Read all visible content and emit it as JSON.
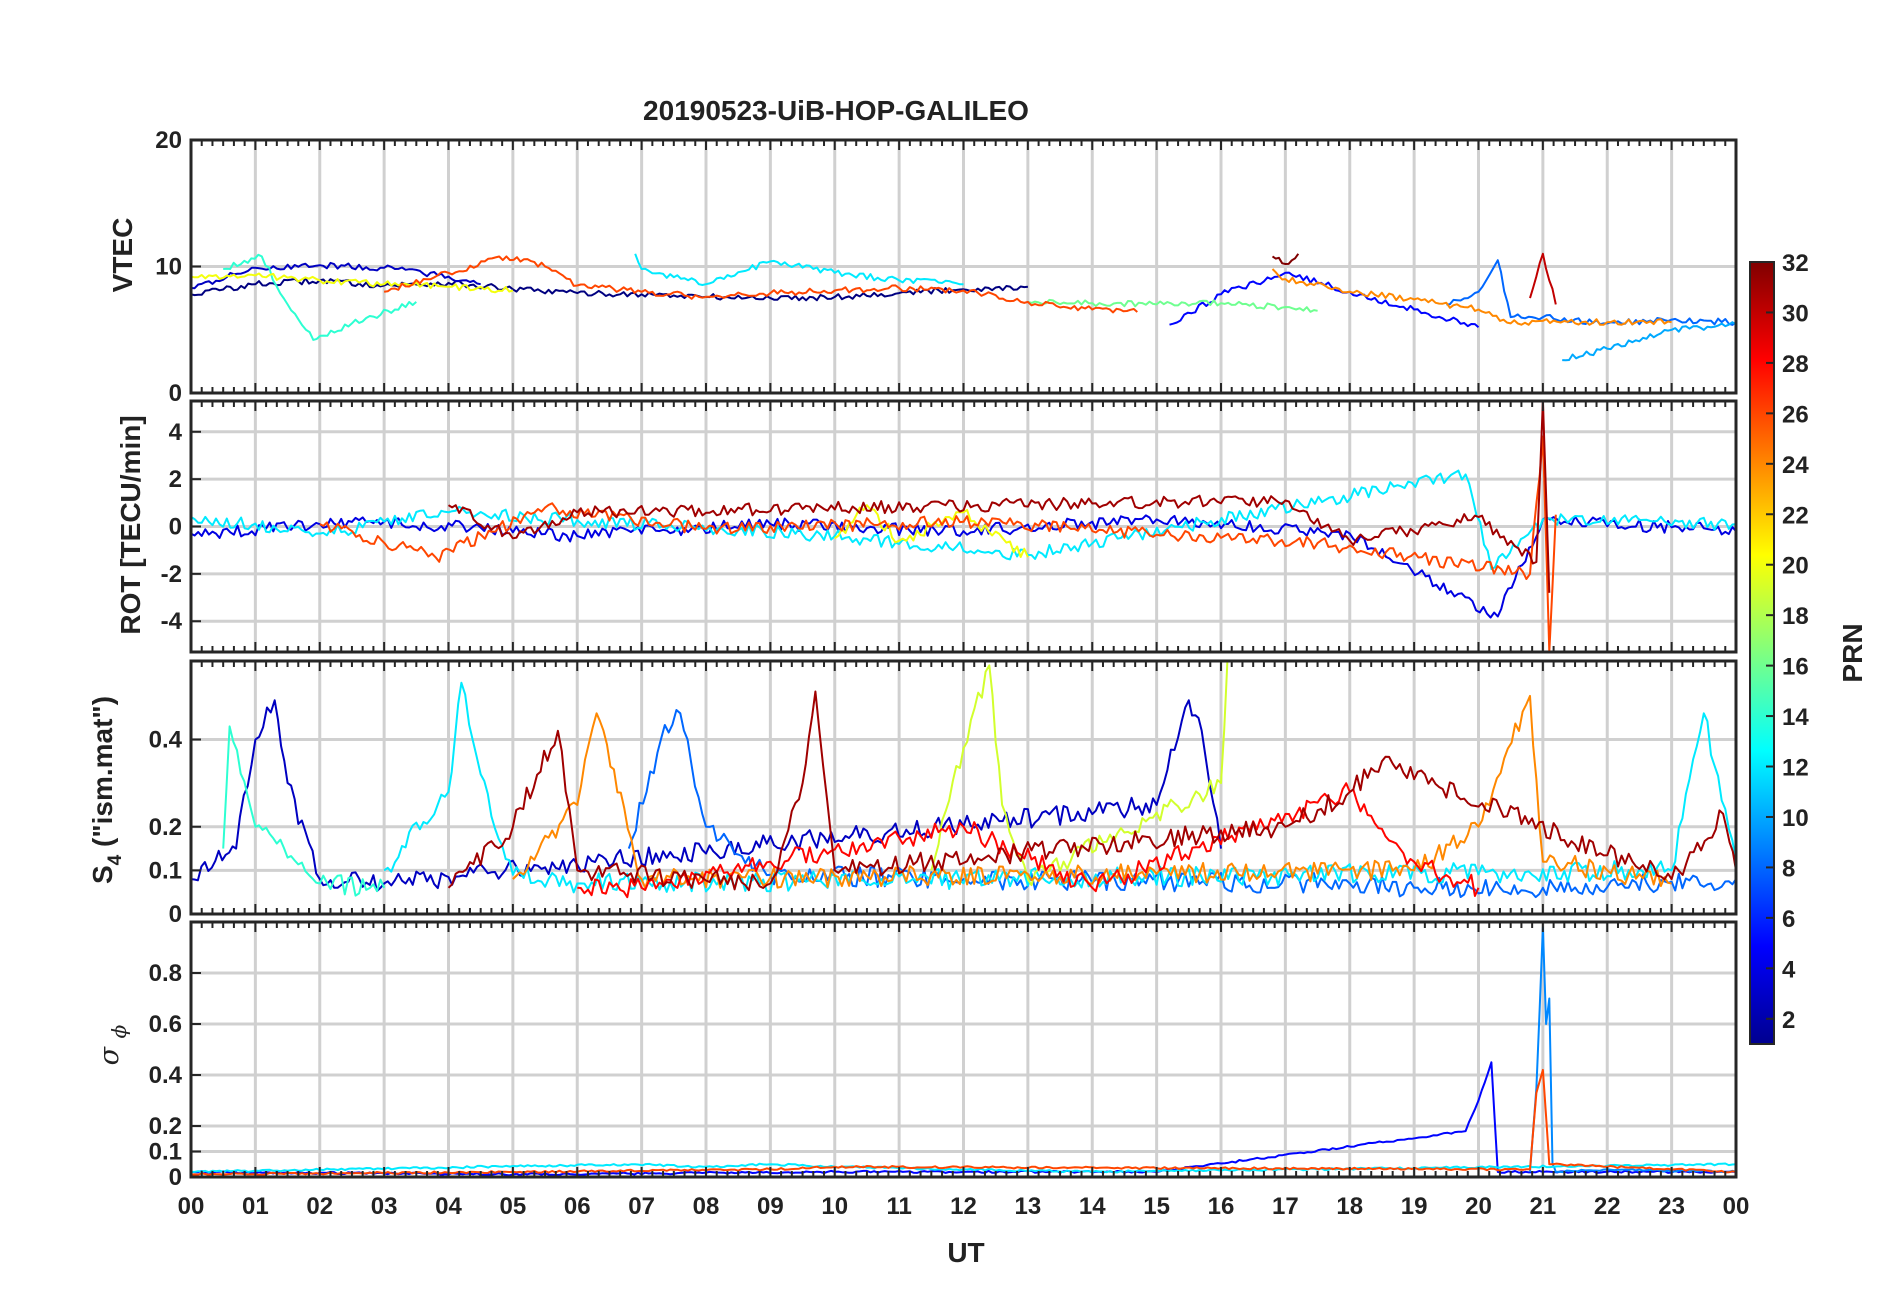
{
  "chart_data": {
    "type": "line",
    "title": "20190523-UiB-HOP-GALILEO",
    "xlabel": "UT",
    "x_tick_labels": [
      "00",
      "01",
      "02",
      "03",
      "04",
      "05",
      "06",
      "07",
      "08",
      "09",
      "10",
      "11",
      "12",
      "13",
      "14",
      "15",
      "16",
      "17",
      "18",
      "19",
      "20",
      "21",
      "22",
      "23",
      "00"
    ],
    "xlim_hours": [
      0,
      24
    ],
    "colorbar": {
      "label": "PRN",
      "colormap": "jet",
      "range": [
        1,
        32
      ],
      "tick_labels": [
        "2",
        "4",
        "6",
        "8",
        "10",
        "12",
        "14",
        "16",
        "18",
        "20",
        "22",
        "24",
        "26",
        "28",
        "30",
        "32"
      ]
    },
    "panels": [
      {
        "name": "VTEC",
        "ylabel": "VTEC",
        "ylim": [
          0,
          20
        ],
        "y_ticks": [
          0,
          10,
          20
        ],
        "y_tick_labels": [
          "0",
          "10",
          "20"
        ],
        "series": [
          {
            "prn": 1,
            "x": [
              0,
              1,
              2,
              3,
              4,
              5,
              6,
              7,
              8,
              9,
              10,
              11,
              12,
              13
            ],
            "values": [
              7.8,
              8.6,
              8.9,
              8.5,
              8.7,
              8.2,
              7.9,
              7.8,
              7.6,
              7.5,
              7.6,
              7.9,
              8.2,
              8.4
            ]
          },
          {
            "prn": 3,
            "x": [
              0,
              1,
              2,
              3,
              4,
              4.5
            ],
            "values": [
              8.3,
              9.9,
              10.1,
              9.9,
              9.2,
              8.6
            ]
          },
          {
            "prn": 5,
            "x": [
              15.2,
              16,
              17,
              18,
              19,
              20
            ],
            "values": [
              5.4,
              7.8,
              9.5,
              8.0,
              6.6,
              5.2
            ]
          },
          {
            "prn": 8,
            "x": [
              19.5,
              20,
              20.3,
              20.5,
              21,
              22,
              23,
              24
            ],
            "values": [
              7.0,
              8.0,
              10.5,
              6.0,
              6.0,
              5.5,
              5.8,
              5.6
            ]
          },
          {
            "prn": 10,
            "x": [
              21.3,
              22,
              23,
              24
            ],
            "values": [
              2.6,
              3.5,
              5.0,
              5.4
            ]
          },
          {
            "prn": 12,
            "x": [
              6.9,
              7.0,
              8,
              9,
              10,
              11,
              12
            ],
            "values": [
              11.0,
              9.8,
              8.6,
              10.4,
              9.5,
              8.9,
              8.6
            ]
          },
          {
            "prn": 14,
            "x": [
              0.5,
              1.1,
              1.5,
              1.9,
              2.5,
              3.5
            ],
            "values": [
              9.8,
              10.8,
              7.0,
              4.2,
              5.5,
              7.2
            ]
          },
          {
            "prn": 16,
            "x": [
              13,
              14,
              15,
              16,
              17,
              17.5
            ],
            "values": [
              7.2,
              7.1,
              7.0,
              7.1,
              6.8,
              6.5
            ]
          },
          {
            "prn": 20,
            "x": [
              0,
              1,
              2,
              3,
              4,
              5
            ],
            "values": [
              9.2,
              9.3,
              8.9,
              8.6,
              8.4,
              8.1
            ]
          },
          {
            "prn": 24,
            "x": [
              16.8,
              17,
              18,
              19,
              20,
              20.5,
              21,
              22,
              23
            ],
            "values": [
              9.8,
              9.0,
              8.0,
              7.4,
              6.6,
              5.5,
              5.7,
              5.6,
              5.6
            ]
          },
          {
            "prn": 26,
            "x": [
              3,
              4,
              4.9,
              5.5,
              6,
              7,
              8,
              9,
              10,
              11,
              12,
              13,
              14,
              14.7
            ],
            "values": [
              8.0,
              9.5,
              10.8,
              10.0,
              8.5,
              8.0,
              7.6,
              7.9,
              8.1,
              8.3,
              8.1,
              7.2,
              6.6,
              6.4
            ]
          },
          {
            "prn": 30,
            "x": [
              20.8,
              21,
              21.2
            ],
            "values": [
              7.5,
              11.0,
              7.0
            ]
          },
          {
            "prn": 32,
            "x": [
              16.8,
              17,
              17.2
            ],
            "values": [
              10.8,
              10.2,
              11.0
            ]
          }
        ]
      },
      {
        "name": "ROT",
        "ylabel": "ROT [TECU/min]",
        "ylim": [
          -5.3,
          5.3
        ],
        "y_ticks": [
          -4,
          -2,
          0,
          2,
          4
        ],
        "y_tick_labels": [
          "-4",
          "-2",
          "0",
          "2",
          "4"
        ],
        "series": [
          {
            "prn": 4,
            "x": [
              0,
              3,
              6,
              9,
              12,
              15,
              18,
              20.3,
              21,
              24
            ],
            "values": [
              -0.3,
              0.2,
              -0.4,
              0.1,
              -0.2,
              0.3,
              -0.3,
              -3.8,
              0.3,
              -0.2
            ]
          },
          {
            "prn": 12,
            "x": [
              0,
              2,
              4,
              10,
              13,
              19.8,
              20.2,
              21,
              24
            ],
            "values": [
              0.4,
              -0.3,
              0.6,
              -0.4,
              -1.2,
              2.2,
              -1.8,
              0.3,
              0.1
            ]
          },
          {
            "prn": 20,
            "x": [
              10,
              10.5,
              11,
              12,
              13
            ],
            "values": [
              -0.5,
              0.9,
              -0.6,
              0.6,
              -1.3
            ]
          },
          {
            "prn": 26,
            "x": [
              2,
              3.8,
              5.5,
              8,
              12,
              17.5,
              20.8,
              21,
              21.1,
              21.2
            ],
            "values": [
              0.1,
              -1.3,
              0.8,
              -0.1,
              0.2,
              -0.7,
              -2.0,
              3.8,
              -5.3,
              0.5
            ]
          },
          {
            "prn": 31,
            "x": [
              4,
              5,
              6,
              17,
              18,
              20,
              20.9,
              21.0,
              21.1
            ],
            "values": [
              0.9,
              -0.5,
              0.6,
              1.1,
              -0.6,
              0.4,
              -1.5,
              5.3,
              -2.8
            ]
          }
        ]
      },
      {
        "name": "S4",
        "ylabel": "S4 (\"ism.mat\")",
        "ylim": [
          0,
          0.58
        ],
        "y_ticks": [
          0,
          0.1,
          0.2,
          0.4
        ],
        "y_tick_labels": [
          "0",
          "0.1",
          "0.2",
          "0.4"
        ],
        "series": [
          {
            "prn": 3,
            "x": [
              0,
              0.7,
              1,
              1.3,
              1.5,
              2,
              3,
              15,
              15.5,
              15.7,
              16
            ],
            "values": [
              0.08,
              0.15,
              0.4,
              0.49,
              0.3,
              0.08,
              0.07,
              0.25,
              0.49,
              0.42,
              0.15
            ]
          },
          {
            "prn": 8,
            "x": [
              6.8,
              7.3,
              7.6,
              8,
              9,
              12,
              18,
              19,
              21,
              24
            ],
            "values": [
              0.15,
              0.4,
              0.46,
              0.2,
              0.09,
              0.08,
              0.07,
              0.06,
              0.06,
              0.08
            ]
          },
          {
            "prn": 12,
            "x": [
              3,
              4,
              4.2,
              4.5,
              5,
              6,
              23,
              23.5,
              24
            ],
            "values": [
              0.1,
              0.28,
              0.53,
              0.32,
              0.09,
              0.07,
              0.1,
              0.46,
              0.12
            ]
          },
          {
            "prn": 14,
            "x": [
              0.5,
              0.6,
              1,
              2,
              3
            ],
            "values": [
              0.15,
              0.43,
              0.2,
              0.07,
              0.06
            ]
          },
          {
            "prn": 19,
            "x": [
              11.5,
              12,
              12.4,
              12.6,
              13,
              16,
              16.1
            ],
            "values": [
              0.1,
              0.38,
              0.57,
              0.25,
              0.08,
              0.3,
              0.58
            ]
          },
          {
            "prn": 24,
            "x": [
              5,
              6,
              6.3,
              7,
              19,
              20,
              20.8,
              21,
              22,
              23
            ],
            "values": [
              0.08,
              0.25,
              0.46,
              0.08,
              0.1,
              0.2,
              0.5,
              0.12,
              0.1,
              0.07
            ]
          },
          {
            "prn": 28,
            "x": [
              6,
              7,
              9,
              12,
              14,
              18,
              19,
              20
            ],
            "values": [
              0.06,
              0.06,
              0.12,
              0.2,
              0.06,
              0.28,
              0.12,
              0.06
            ]
          },
          {
            "prn": 31,
            "x": [
              4,
              5,
              5.7,
              6,
              9,
              9.5,
              9.7,
              10,
              17,
              18,
              18.5,
              23,
              23.8,
              24
            ],
            "values": [
              0.06,
              0.2,
              0.42,
              0.1,
              0.07,
              0.3,
              0.51,
              0.1,
              0.2,
              0.28,
              0.35,
              0.08,
              0.23,
              0.1
            ]
          }
        ]
      },
      {
        "name": "sigma_phi",
        "ylabel": "σ φ",
        "ylim": [
          0,
          1
        ],
        "y_ticks": [
          0,
          0.1,
          0.2,
          0.4,
          0.6,
          0.8
        ],
        "y_tick_labels": [
          "0",
          "0.1",
          "0.2",
          "0.4",
          "0.6",
          "0.8"
        ],
        "series": [
          {
            "prn": 5,
            "x": [
              0,
              5,
              10,
              15,
              19.8,
              20,
              20.2,
              20.3,
              21,
              24
            ],
            "values": [
              0.02,
              0.01,
              0.02,
              0.02,
              0.18,
              0.3,
              0.45,
              0.02,
              0.02,
              0.02
            ]
          },
          {
            "prn": 9,
            "x": [
              20.8,
              20.9,
              21.0,
              21.05,
              21.1,
              21.15,
              21.2,
              22,
              24
            ],
            "values": [
              0.02,
              0.35,
              0.98,
              0.6,
              0.7,
              0.05,
              0.02,
              0.03,
              0.02
            ]
          },
          {
            "prn": 12,
            "x": [
              0,
              6.9,
              8,
              9,
              10,
              12,
              14,
              24
            ],
            "values": [
              0.02,
              0.05,
              0.04,
              0.05,
              0.04,
              0.03,
              0.02,
              0.05
            ]
          },
          {
            "prn": 26,
            "x": [
              0,
              5,
              9,
              10,
              20.8,
              20.9,
              21.0,
              21.1,
              24
            ],
            "values": [
              0.01,
              0.02,
              0.03,
              0.04,
              0.03,
              0.33,
              0.42,
              0.05,
              0.02
            ]
          }
        ]
      }
    ]
  }
}
